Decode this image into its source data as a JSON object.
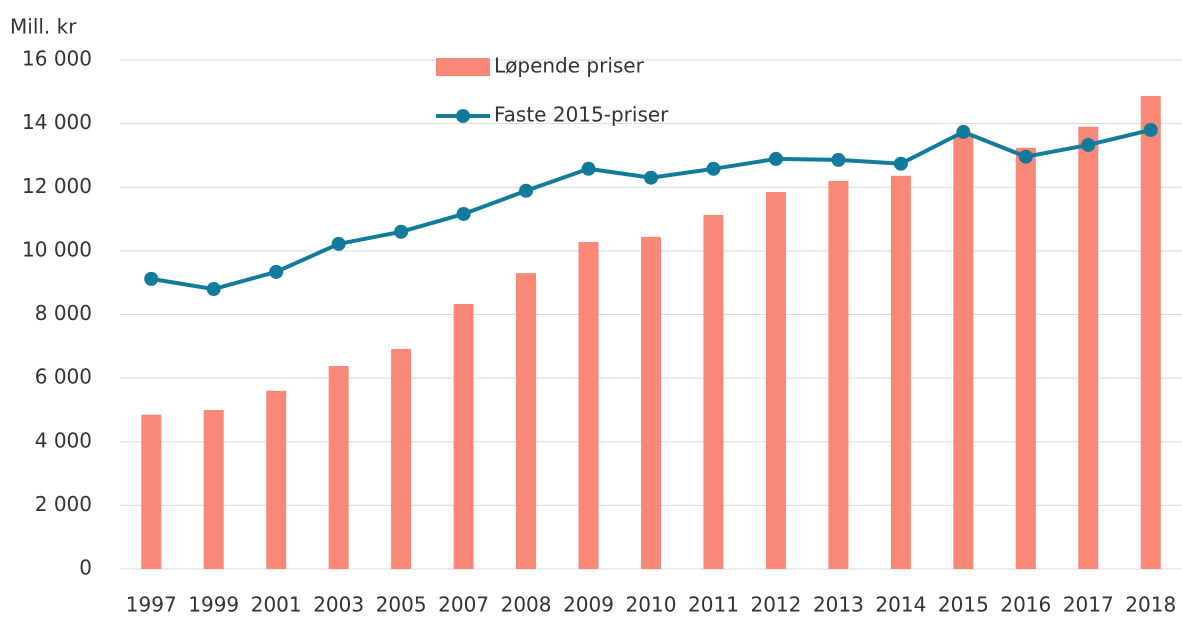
{
  "chart_data": {
    "type": "bar_line",
    "y_label": "Mill. kr",
    "categories": [
      "1997",
      "1999",
      "2001",
      "2003",
      "2005",
      "2007",
      "2008",
      "2009",
      "2010",
      "2011",
      "2012",
      "2013",
      "2014",
      "2015",
      "2016",
      "2017",
      "2018"
    ],
    "series": [
      {
        "name": "Løpende priser",
        "type": "bar",
        "color": "#f98877",
        "values": [
          4850,
          5000,
          5600,
          6380,
          6920,
          8330,
          9300,
          10280,
          10440,
          11130,
          11850,
          12200,
          12360,
          13650,
          13240,
          13900,
          14870
        ]
      },
      {
        "name": "Faste 2015-priser",
        "type": "line",
        "color": "#127b9a",
        "values": [
          9120,
          8800,
          9340,
          10220,
          10600,
          11160,
          11890,
          12580,
          12300,
          12580,
          12890,
          12860,
          12740,
          13740,
          12960,
          13330,
          13800
        ]
      }
    ],
    "ylim": [
      0,
      16000
    ],
    "yticks": [
      0,
      {
        "value": 2000,
        "label": "2 000"
      },
      {
        "value": 4000,
        "label": "4 000"
      },
      {
        "value": 6000,
        "label": "6 000"
      },
      {
        "value": 8000,
        "label": "8 000"
      },
      {
        "value": 10000,
        "label": "10 000"
      },
      {
        "value": 12000,
        "label": "12 000"
      },
      {
        "value": 14000,
        "label": "14 000"
      },
      {
        "value": 16000,
        "label": "16 000"
      }
    ],
    "grid": true
  }
}
